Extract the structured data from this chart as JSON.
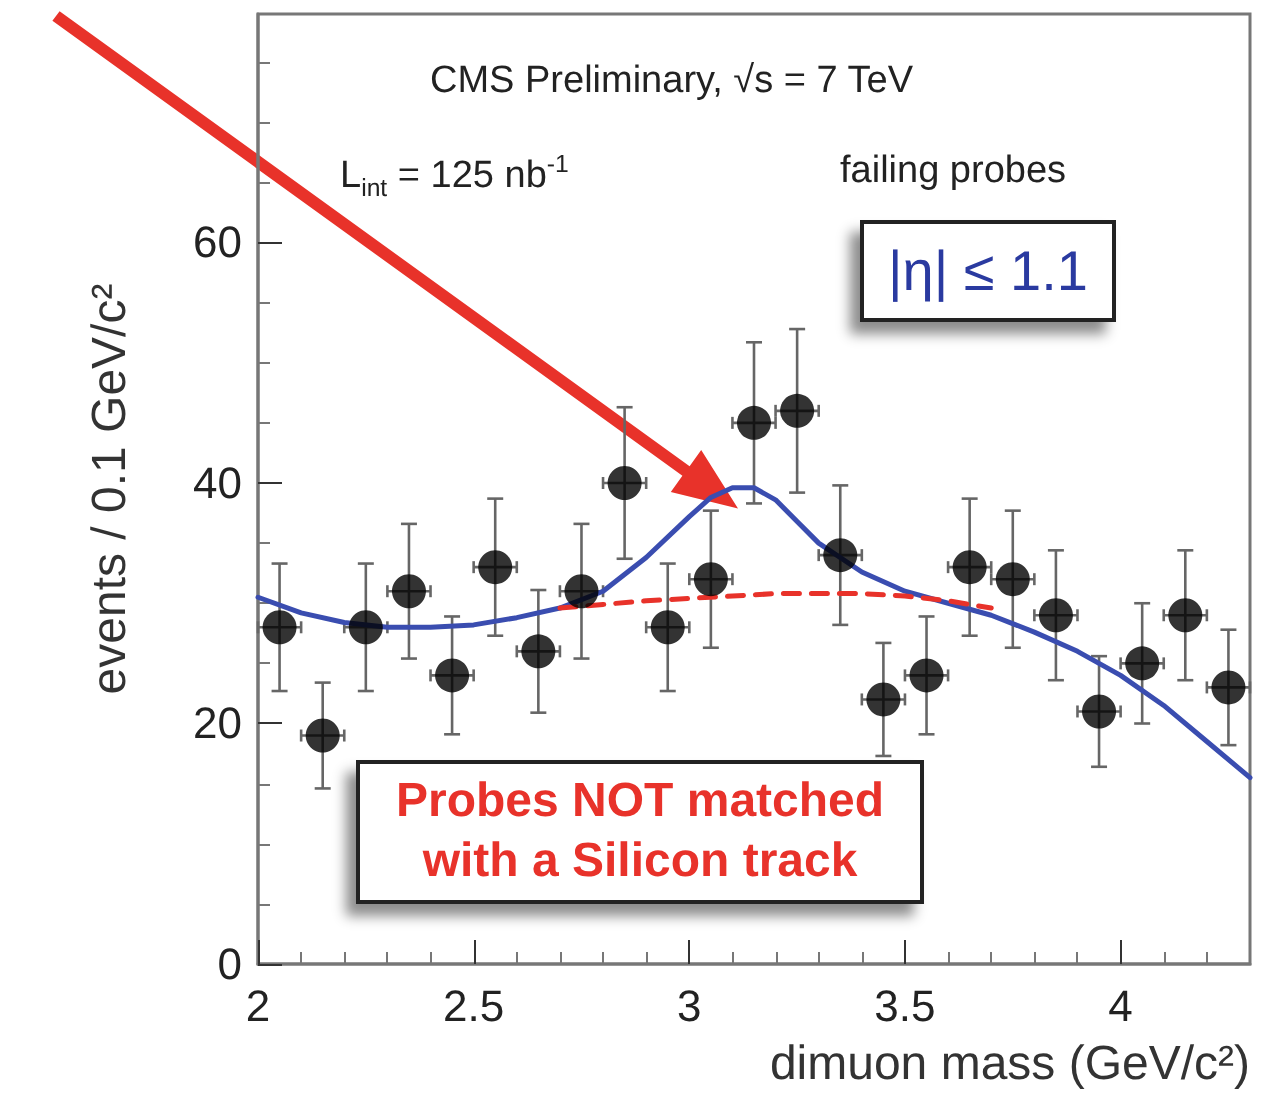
{
  "chart_data": {
    "type": "scatter",
    "xlabel": "dimuon mass (GeV/c²)",
    "ylabel": "events / 0.1 GeV/c²",
    "annotations": [
      "CMS Preliminary, √s = 7 TeV",
      "L$_{int}$ = 125 nb$^{-1}$",
      "failing probes",
      "|η| ≤ 1.1",
      "Probes NOT matched with a Silicon track"
    ],
    "xlim": [
      2,
      4.3
    ],
    "xticks": [
      2,
      2.5,
      3,
      3.5,
      4
    ],
    "ylim": [
      0,
      79
    ],
    "yticks": [
      0,
      20,
      40,
      60
    ],
    "grid": false,
    "marker": "circle",
    "series": [
      {
        "color": "#000000",
        "x": [
          2.05,
          2.15,
          2.25,
          2.35,
          2.45,
          2.55,
          2.65,
          2.75,
          2.85,
          2.95,
          3.05,
          3.15,
          3.25,
          3.35,
          3.45,
          3.55,
          3.65,
          3.75,
          3.85,
          3.95,
          4.05,
          4.15,
          4.25
        ],
        "values": [
          28,
          19,
          28,
          31,
          24,
          33,
          26,
          31,
          40,
          28,
          32,
          45,
          46,
          34,
          22,
          24,
          33,
          32,
          29,
          21,
          25,
          29,
          23
        ],
        "errors": [
          5.3,
          4.4,
          5.3,
          5.6,
          4.9,
          5.7,
          5.1,
          5.6,
          6.3,
          5.3,
          5.7,
          6.7,
          6.8,
          5.8,
          4.7,
          4.9,
          5.7,
          5.7,
          5.4,
          4.6,
          5.0,
          5.4,
          4.8
        ],
        "xerrors": [
          0.05,
          0.05,
          0.05,
          0.05,
          0.05,
          0.05,
          0.05,
          0.05,
          0.05,
          0.05,
          0.05,
          0.05,
          0.05,
          0.05,
          0.05,
          0.05,
          0.05,
          0.05,
          0.05,
          0.05,
          0.05,
          0.05,
          0.05
        ]
      },
      {
        "type": "line",
        "color": "#3a4db0",
        "marker": "none",
        "line_style": "solid",
        "x": [
          2.0,
          2.1,
          2.2,
          2.3,
          2.4,
          2.5,
          2.6,
          2.7,
          2.8,
          2.9,
          3.0,
          3.05,
          3.1,
          3.15,
          3.2,
          3.25,
          3.3,
          3.4,
          3.5,
          3.6,
          3.7,
          3.8,
          3.9,
          4.0,
          4.1,
          4.2,
          4.3
        ],
        "values": [
          30.5,
          29.2,
          28.4,
          28.0,
          28.0,
          28.2,
          28.8,
          29.6,
          31.0,
          33.8,
          37.2,
          38.8,
          39.6,
          39.6,
          38.6,
          36.8,
          35.0,
          32.6,
          31.0,
          30.0,
          29.0,
          27.6,
          26.0,
          24.0,
          21.5,
          18.5,
          15.5
        ]
      },
      {
        "type": "line",
        "color": "#e8322a",
        "marker": "none",
        "line_style": "dashed",
        "x": [
          2.7,
          2.8,
          2.9,
          3.0,
          3.1,
          3.2,
          3.3,
          3.4,
          3.5,
          3.6,
          3.7
        ],
        "values": [
          29.6,
          29.9,
          30.2,
          30.4,
          30.6,
          30.8,
          30.8,
          30.8,
          30.6,
          30.2,
          29.6
        ]
      }
    ]
  }
}
